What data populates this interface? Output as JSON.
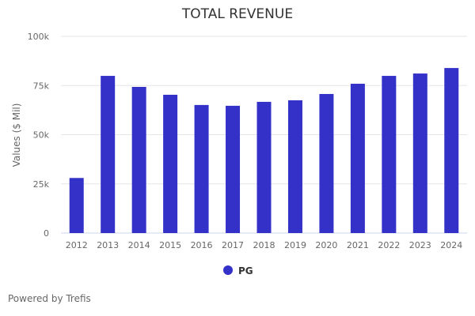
{
  "chart_data": {
    "type": "bar",
    "title": "TOTAL REVENUE",
    "xlabel": "",
    "ylabel": "Values ($ Mil)",
    "ylim": [
      0,
      100000
    ],
    "yticks": [
      0,
      25000,
      50000,
      75000,
      100000
    ],
    "ytick_labels": [
      "0",
      "25k",
      "50k",
      "75k",
      "100k"
    ],
    "grid": true,
    "legend_position": "bottom",
    "categories": [
      "2012",
      "2013",
      "2014",
      "2015",
      "2016",
      "2017",
      "2018",
      "2019",
      "2020",
      "2021",
      "2022",
      "2023",
      "2024"
    ],
    "series": [
      {
        "name": "PG",
        "color": "#3431c9",
        "values": [
          28000,
          79900,
          74300,
          70300,
          65100,
          64700,
          66700,
          67500,
          70700,
          75900,
          79900,
          81100,
          83900
        ]
      }
    ]
  },
  "footer": "Powered by Trefis"
}
